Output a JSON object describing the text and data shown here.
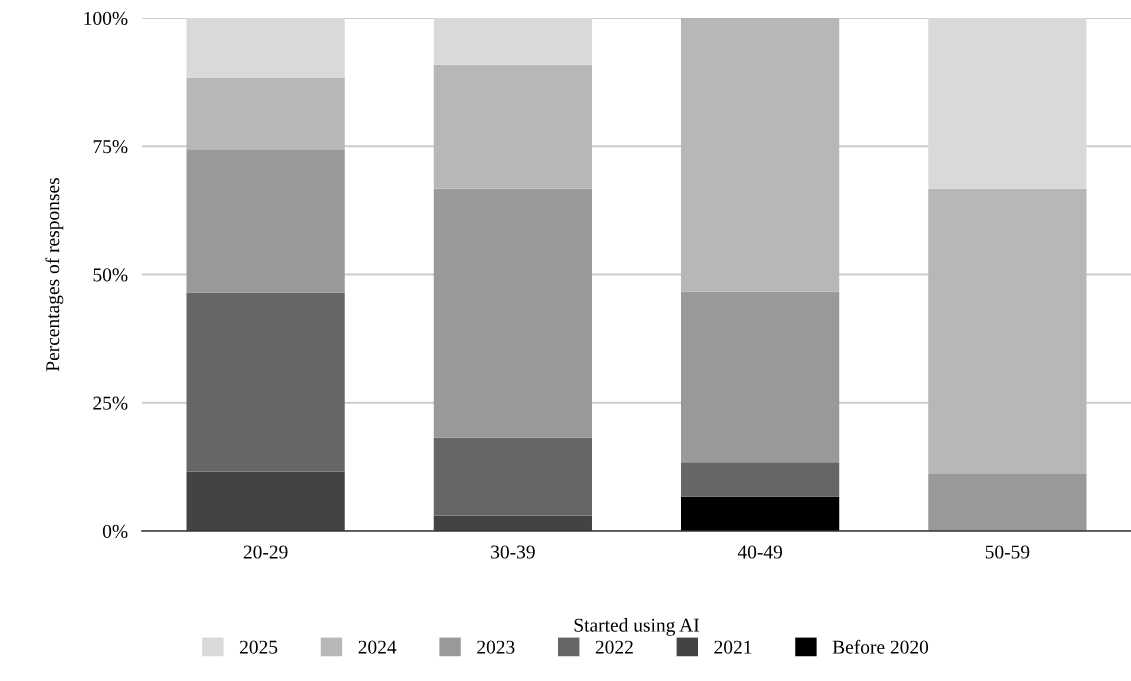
{
  "chart_data": {
    "type": "bar",
    "stacked": true,
    "xlabel": "Started using AI",
    "ylabel": "Percentages of responses",
    "categories": [
      "20-29",
      "30-39",
      "40-49",
      "50-59"
    ],
    "series": [
      {
        "name": "Before 2020",
        "color": "#000000",
        "values": [
          0,
          0,
          6.7,
          0
        ]
      },
      {
        "name": "2021",
        "color": "#434343",
        "values": [
          11.6,
          3.0,
          0,
          0
        ]
      },
      {
        "name": "2022",
        "color": "#666666",
        "values": [
          34.9,
          15.2,
          6.7,
          0
        ]
      },
      {
        "name": "2023",
        "color": "#999999",
        "values": [
          27.9,
          48.5,
          33.3,
          11.1
        ]
      },
      {
        "name": "2024",
        "color": "#b7b7b7",
        "values": [
          14.0,
          24.2,
          53.3,
          55.6
        ]
      },
      {
        "name": "2025",
        "color": "#d9d9d9",
        "values": [
          11.6,
          9.1,
          0,
          33.3
        ]
      }
    ],
    "ylim": [
      0,
      100
    ],
    "yticks": [
      {
        "value": 0,
        "label": "0%"
      },
      {
        "value": 25,
        "label": "25%"
      },
      {
        "value": 50,
        "label": "50%"
      },
      {
        "value": 75,
        "label": "75%"
      },
      {
        "value": 100,
        "label": "100%"
      }
    ],
    "grid": "y",
    "legend": "bottom"
  }
}
